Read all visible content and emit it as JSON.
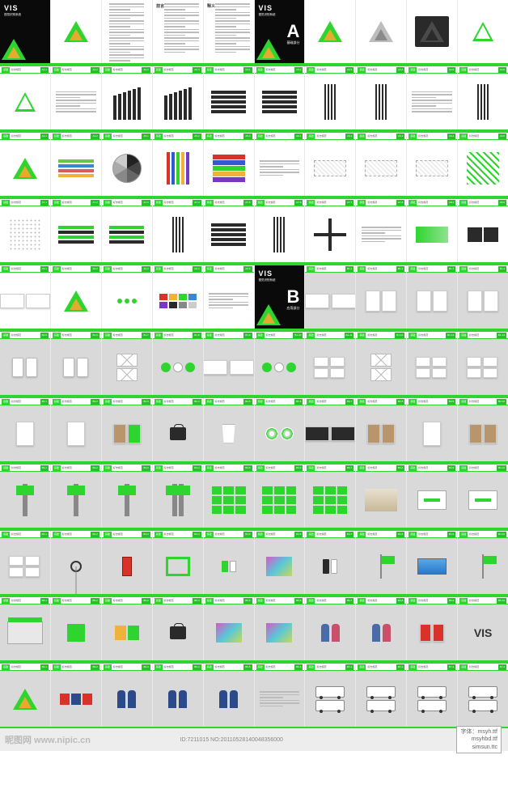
{
  "brand": {
    "vis_title": "VIS",
    "vis_subtitle": "视觉识别系统",
    "vis_en": "VISUAL IDENTITY SYSTEM",
    "sections": {
      "A": "基础部分",
      "B": "应用部分"
    }
  },
  "colors": {
    "accent": "#2fd52f",
    "accent_dark": "#28c028",
    "gold": "#e8a92f",
    "dark": "#0a0a0a",
    "gray_bg": "#d9d9d9",
    "text": "#333333",
    "palette_row3": [
      "#6cc44a",
      "#3b87d1",
      "#e15a5a",
      "#f1b23a"
    ],
    "vbars": [
      "#d8322a",
      "#2f5bd5",
      "#2fd52f",
      "#f1b23a",
      "#7a36c7"
    ]
  },
  "header": {
    "block": "基础",
    "label": "标志规范",
    "code_prefix_A": "A",
    "code_prefix_B": "B"
  },
  "row1": [
    {
      "type": "cover_main"
    },
    {
      "type": "logo_big"
    },
    {
      "type": "toc",
      "title": "目录"
    },
    {
      "type": "text",
      "title": "前言"
    },
    {
      "type": "text",
      "title": "释义"
    },
    {
      "type": "cover_section",
      "letter": "A"
    },
    {
      "type": "logo_big"
    },
    {
      "type": "logo_gray"
    },
    {
      "type": "logo_dark"
    },
    {
      "type": "logo_outline"
    }
  ],
  "row2_codes": [
    "A2-1",
    "A2-2",
    "A2-3",
    "A2-4",
    "A3-1",
    "A3-2",
    "A3-3",
    "A3-4",
    "A3-5",
    "A3-6"
  ],
  "row2": [
    {
      "c": "tri_grid"
    },
    {
      "c": "text_block",
      "extra": "bars2"
    },
    {
      "c": "vbars_dark"
    },
    {
      "c": "vbars_dark"
    },
    {
      "c": "hstripes_dark"
    },
    {
      "c": "hstripes_dark"
    },
    {
      "c": "vbars_thin"
    },
    {
      "c": "vbars_thin"
    },
    {
      "c": "text_block"
    },
    {
      "c": "vbars_thin"
    }
  ],
  "row3_codes": [
    "A4-1",
    "A4-2",
    "A5-1",
    "A5-2",
    "A5-3",
    "A6-1",
    "A6-2",
    "A6-3",
    "A6-4",
    "A6-5"
  ],
  "row3": [
    {
      "c": "tri_logo"
    },
    {
      "c": "swatch_rows"
    },
    {
      "c": "colwheel"
    },
    {
      "c": "vbars_color"
    },
    {
      "c": "stack_color"
    },
    {
      "c": "text_small"
    },
    {
      "c": "sketch"
    },
    {
      "c": "sketch"
    },
    {
      "c": "sketch"
    },
    {
      "c": "pattern"
    }
  ],
  "row4_codes": [
    "A7-1",
    "A7-2",
    "A7-3",
    "A7-4",
    "A7-5",
    "A7-6",
    "A7-7",
    "A7-8",
    "A8-1",
    "A8-2"
  ],
  "row4": [
    {
      "c": "grid_dots"
    },
    {
      "c": "hstripes_mix"
    },
    {
      "c": "hstripes_mix"
    },
    {
      "c": "vbars_thin"
    },
    {
      "c": "hstripes_dark"
    },
    {
      "c": "vbars_thin"
    },
    {
      "c": "cross"
    },
    {
      "c": "text_small"
    },
    {
      "c": "squiggle"
    },
    {
      "c": "ornament"
    }
  ],
  "row5_codes": [
    "A9-1",
    "A9-2",
    "A9-3",
    "A9-4",
    "A9-5",
    "",
    "B1-1",
    "B1-2",
    "B1-3",
    "B1-4"
  ],
  "row5": [
    {
      "c": "cards"
    },
    {
      "c": "tri_small_set"
    },
    {
      "c": "dots_green"
    },
    {
      "c": "swatches"
    },
    {
      "c": "text_small"
    },
    {
      "type": "cover_section",
      "letter": "B"
    },
    {
      "c": "card_pair",
      "g": true
    },
    {
      "c": "paper_set",
      "g": true
    },
    {
      "c": "paper_set",
      "g": true
    },
    {
      "c": "paper_set",
      "g": true
    }
  ],
  "row6_codes": [
    "B1-5",
    "B1-6",
    "B1-7",
    "B1-8",
    "B1-9",
    "B1-10",
    "B1-11",
    "B1-12",
    "B1-13",
    "B1-14"
  ],
  "row6": [
    {
      "c": "tag_lanyard"
    },
    {
      "c": "tag_lanyard"
    },
    {
      "c": "envelope_set"
    },
    {
      "c": "badges"
    },
    {
      "c": "card_pair"
    },
    {
      "c": "badges"
    },
    {
      "c": "cards_set"
    },
    {
      "c": "envelope_set"
    },
    {
      "c": "cards_set"
    },
    {
      "c": "cards_set"
    }
  ],
  "row7_codes": [
    "B2-1",
    "B2-2",
    "B2-3",
    "B2-4",
    "B2-5",
    "B2-6",
    "B2-7",
    "B2-8",
    "B2-9",
    "B2-10"
  ],
  "row7": [
    {
      "c": "paper"
    },
    {
      "c": "paper"
    },
    {
      "c": "notebook"
    },
    {
      "c": "bag"
    },
    {
      "c": "cup"
    },
    {
      "c": "disc"
    },
    {
      "c": "card_dark_set"
    },
    {
      "c": "folders"
    },
    {
      "c": "paper"
    },
    {
      "c": "folders"
    }
  ],
  "row8_codes": [
    "B3-1",
    "B3-2",
    "B3-3",
    "B3-4",
    "B3-5",
    "B3-6",
    "B3-7",
    "B3-8",
    "B3-9",
    "B3-10"
  ],
  "row8": [
    {
      "c": "pole_sign"
    },
    {
      "c": "pole_sign"
    },
    {
      "c": "pole_sign"
    },
    {
      "c": "sign_multi"
    },
    {
      "c": "grid3"
    },
    {
      "c": "grid3"
    },
    {
      "c": "grid3"
    },
    {
      "c": "interior"
    },
    {
      "c": "wall_sign"
    },
    {
      "c": "wall_sign"
    }
  ],
  "row9_codes": [
    "B4-1",
    "B4-2",
    "B4-3",
    "B4-4",
    "B4-5",
    "B4-6",
    "B4-7",
    "B4-8",
    "B4-9",
    "B4-10"
  ],
  "row9": [
    {
      "c": "cards_set"
    },
    {
      "c": "clock_stand"
    },
    {
      "c": "phonebooth"
    },
    {
      "c": "frame_green"
    },
    {
      "c": "small_items"
    },
    {
      "c": "photo"
    },
    {
      "c": "phones"
    },
    {
      "c": "flag"
    },
    {
      "c": "billboard"
    },
    {
      "c": "flag"
    }
  ],
  "row10_codes": [
    "B5-1",
    "B5-2",
    "B5-3",
    "B5-4",
    "B5-5",
    "B5-6",
    "B5-7",
    "B5-8",
    "B5-9",
    "B5-10"
  ],
  "row10": [
    {
      "c": "building"
    },
    {
      "c": "box"
    },
    {
      "c": "boxes"
    },
    {
      "c": "bag"
    },
    {
      "c": "photo"
    },
    {
      "c": "photo"
    },
    {
      "c": "person"
    },
    {
      "c": "person"
    },
    {
      "c": "red_docs"
    },
    {
      "c": "big_vis"
    }
  ],
  "row11_codes": [
    "B6-1",
    "B6-2",
    "B6-3",
    "B6-4",
    "B6-5",
    "B6-6",
    "B7-1",
    "B7-2",
    "B7-3",
    "B7-4"
  ],
  "row11": [
    {
      "c": "tri_logo"
    },
    {
      "c": "shirts"
    },
    {
      "c": "uniforms"
    },
    {
      "c": "uniforms"
    },
    {
      "c": "uniforms"
    },
    {
      "c": "text_small"
    },
    {
      "c": "vehicle"
    },
    {
      "c": "vehicle"
    },
    {
      "c": "vehicle"
    },
    {
      "c": "vehicle"
    }
  ],
  "footer": {
    "watermark": "昵图网 www.nipic.cn",
    "meta": "ID:7211015 NO:20110528140048356000",
    "fonts_title": "字体：msyh.ttf",
    "fonts": [
      "msyhbd.ttf",
      "simsun.ttc"
    ]
  }
}
